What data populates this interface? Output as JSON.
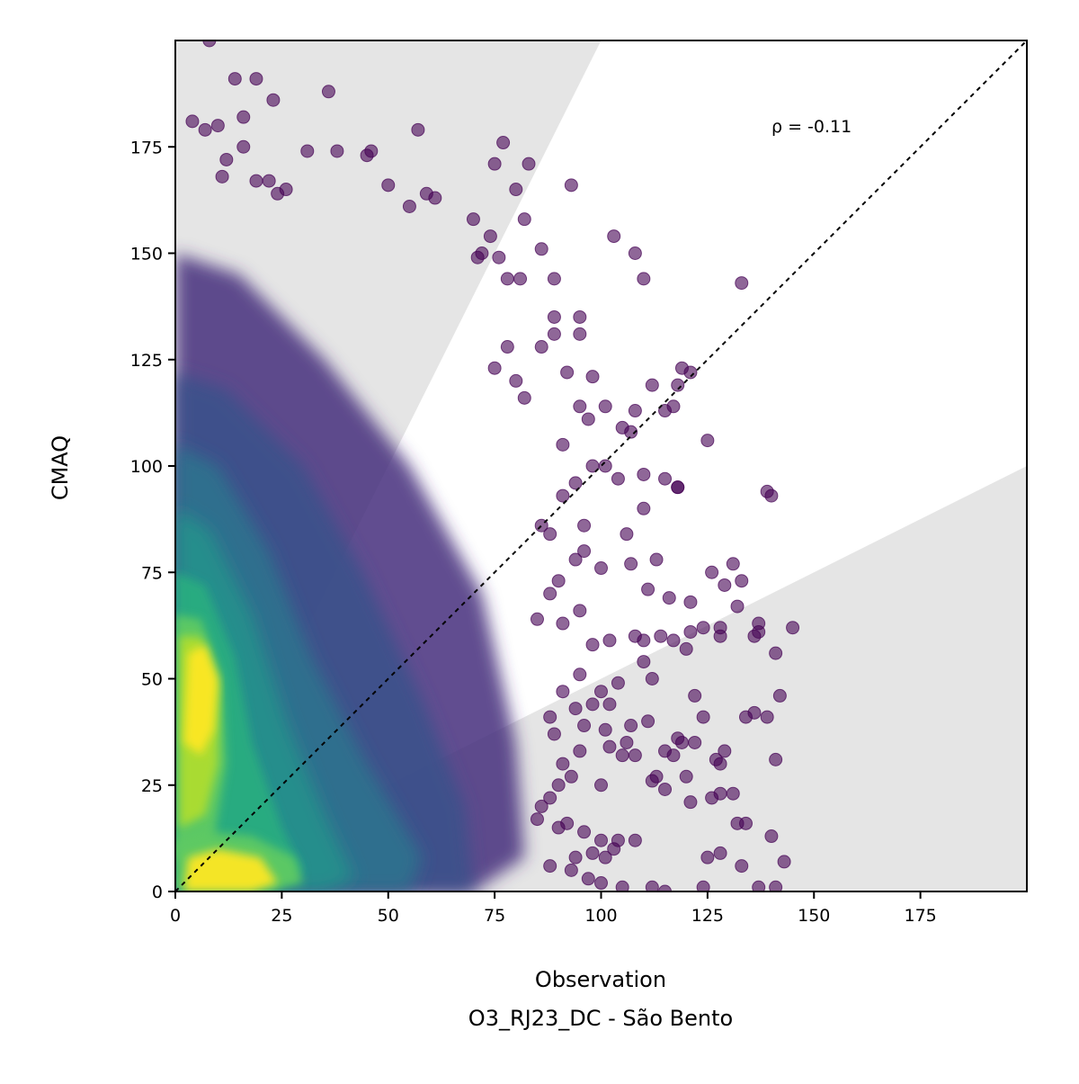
{
  "chart_data": {
    "type": "scatter",
    "xlabel": "Observation",
    "xlabel_line2": "O3_RJ23_DC - São Bento",
    "ylabel": "CMAQ",
    "xlim": [
      0,
      200
    ],
    "ylim": [
      0,
      200
    ],
    "xticks": [
      "0",
      "25",
      "50",
      "75",
      "100",
      "125",
      "150",
      "175"
    ],
    "yticks": [
      "0",
      "25",
      "50",
      "75",
      "100",
      "125",
      "150",
      "175"
    ],
    "annotation": "ρ = -0.11",
    "grid": false,
    "reference_line": "1:1 dashed",
    "shaded_region": "outside factor-of-2 bounds (y > 2x and y < x/2)",
    "colormap": "viridis (point density)",
    "colors": {
      "shade": "#e5e5e5",
      "low_density": "#440154",
      "mid_density": "#21918c",
      "high_density": "#fde725"
    },
    "sparse_points": [
      [
        8,
        200
      ],
      [
        14,
        191
      ],
      [
        19,
        191
      ],
      [
        23,
        186
      ],
      [
        36,
        188
      ],
      [
        4,
        181
      ],
      [
        10,
        180
      ],
      [
        7,
        179
      ],
      [
        12,
        172
      ],
      [
        16,
        182
      ],
      [
        16,
        175
      ],
      [
        11,
        168
      ],
      [
        22,
        167
      ],
      [
        19,
        167
      ],
      [
        24,
        164
      ],
      [
        26,
        165
      ],
      [
        31,
        174
      ],
      [
        38,
        174
      ],
      [
        45,
        173
      ],
      [
        46,
        174
      ],
      [
        50,
        166
      ],
      [
        57,
        179
      ],
      [
        61,
        163
      ],
      [
        59,
        164
      ],
      [
        55,
        161
      ],
      [
        77,
        176
      ],
      [
        83,
        171
      ],
      [
        75,
        171
      ],
      [
        93,
        166
      ],
      [
        70,
        158
      ],
      [
        74,
        154
      ],
      [
        82,
        158
      ],
      [
        80,
        165
      ],
      [
        86,
        151
      ],
      [
        72,
        150
      ],
      [
        71,
        149
      ],
      [
        76,
        149
      ],
      [
        78,
        144
      ],
      [
        81,
        144
      ],
      [
        89,
        144
      ],
      [
        78,
        128
      ],
      [
        86,
        128
      ],
      [
        89,
        135
      ],
      [
        95,
        135
      ],
      [
        95,
        131
      ],
      [
        89,
        131
      ],
      [
        103,
        154
      ],
      [
        108,
        150
      ],
      [
        110,
        144
      ],
      [
        133,
        143
      ],
      [
        75,
        123
      ],
      [
        80,
        120
      ],
      [
        82,
        116
      ],
      [
        92,
        122
      ],
      [
        98,
        121
      ],
      [
        112,
        119
      ],
      [
        119,
        123
      ],
      [
        121,
        122
      ],
      [
        117,
        114
      ],
      [
        115,
        113
      ],
      [
        118,
        119
      ],
      [
        95,
        114
      ],
      [
        101,
        114
      ],
      [
        108,
        113
      ],
      [
        97,
        111
      ],
      [
        105,
        109
      ],
      [
        107,
        108
      ],
      [
        101,
        100
      ],
      [
        104,
        97
      ],
      [
        110,
        98
      ],
      [
        115,
        97
      ],
      [
        118,
        95
      ],
      [
        125,
        106
      ],
      [
        139,
        94
      ],
      [
        140,
        93
      ],
      [
        106,
        84
      ],
      [
        110,
        90
      ],
      [
        96,
        86
      ],
      [
        100,
        76
      ],
      [
        107,
        77
      ],
      [
        118,
        95
      ],
      [
        113,
        78
      ],
      [
        111,
        71
      ],
      [
        116,
        69
      ],
      [
        126,
        75
      ],
      [
        129,
        72
      ],
      [
        131,
        77
      ],
      [
        133,
        73
      ],
      [
        132,
        67
      ],
      [
        121,
        68
      ],
      [
        114,
        60
      ],
      [
        121,
        61
      ],
      [
        124,
        62
      ],
      [
        128,
        62
      ],
      [
        128,
        60
      ],
      [
        136,
        60
      ],
      [
        137,
        61
      ],
      [
        137,
        63
      ],
      [
        145,
        62
      ],
      [
        141,
        56
      ],
      [
        142,
        46
      ],
      [
        136,
        42
      ],
      [
        134,
        41
      ],
      [
        139,
        41
      ],
      [
        141,
        31
      ],
      [
        127,
        31
      ],
      [
        129,
        33
      ],
      [
        128,
        30
      ],
      [
        122,
        35
      ],
      [
        118,
        36
      ],
      [
        115,
        33
      ],
      [
        117,
        32
      ],
      [
        112,
        26
      ],
      [
        120,
        27
      ],
      [
        121,
        21
      ],
      [
        126,
        22
      ],
      [
        128,
        23
      ],
      [
        131,
        23
      ],
      [
        134,
        16
      ],
      [
        132,
        16
      ],
      [
        140,
        13
      ],
      [
        128,
        9
      ],
      [
        125,
        8
      ],
      [
        133,
        6
      ],
      [
        143,
        7
      ],
      [
        124,
        1
      ],
      [
        112,
        1
      ],
      [
        115,
        0
      ],
      [
        105,
        1
      ],
      [
        137,
        1
      ],
      [
        141,
        1
      ],
      [
        122,
        46
      ],
      [
        124,
        41
      ],
      [
        120,
        57
      ],
      [
        117,
        59
      ],
      [
        110,
        59
      ],
      [
        108,
        60
      ],
      [
        110,
        54
      ],
      [
        112,
        50
      ],
      [
        104,
        49
      ],
      [
        100,
        47
      ],
      [
        102,
        44
      ],
      [
        98,
        44
      ],
      [
        94,
        43
      ],
      [
        96,
        39
      ],
      [
        101,
        38
      ],
      [
        107,
        39
      ],
      [
        111,
        40
      ],
      [
        106,
        35
      ],
      [
        102,
        34
      ],
      [
        95,
        33
      ],
      [
        91,
        30
      ],
      [
        93,
        27
      ],
      [
        100,
        25
      ],
      [
        105,
        32
      ],
      [
        108,
        32
      ],
      [
        113,
        27
      ],
      [
        115,
        24
      ],
      [
        119,
        35
      ],
      [
        90,
        25
      ],
      [
        86,
        20
      ],
      [
        92,
        16
      ],
      [
        96,
        14
      ],
      [
        100,
        12
      ],
      [
        104,
        12
      ],
      [
        108,
        12
      ],
      [
        103,
        10
      ],
      [
        101,
        8
      ],
      [
        98,
        9
      ],
      [
        94,
        8
      ],
      [
        88,
        6
      ],
      [
        93,
        5
      ],
      [
        97,
        3
      ],
      [
        100,
        2
      ],
      [
        90,
        15
      ],
      [
        85,
        17
      ],
      [
        88,
        22
      ],
      [
        89,
        37
      ],
      [
        88,
        41
      ],
      [
        91,
        47
      ],
      [
        95,
        51
      ],
      [
        98,
        58
      ],
      [
        102,
        59
      ],
      [
        95,
        66
      ],
      [
        91,
        63
      ],
      [
        85,
        64
      ],
      [
        88,
        70
      ],
      [
        90,
        73
      ],
      [
        94,
        78
      ],
      [
        96,
        80
      ],
      [
        88,
        84
      ],
      [
        86,
        86
      ],
      [
        91,
        93
      ],
      [
        94,
        96
      ],
      [
        98,
        100
      ],
      [
        91,
        105
      ]
    ]
  }
}
